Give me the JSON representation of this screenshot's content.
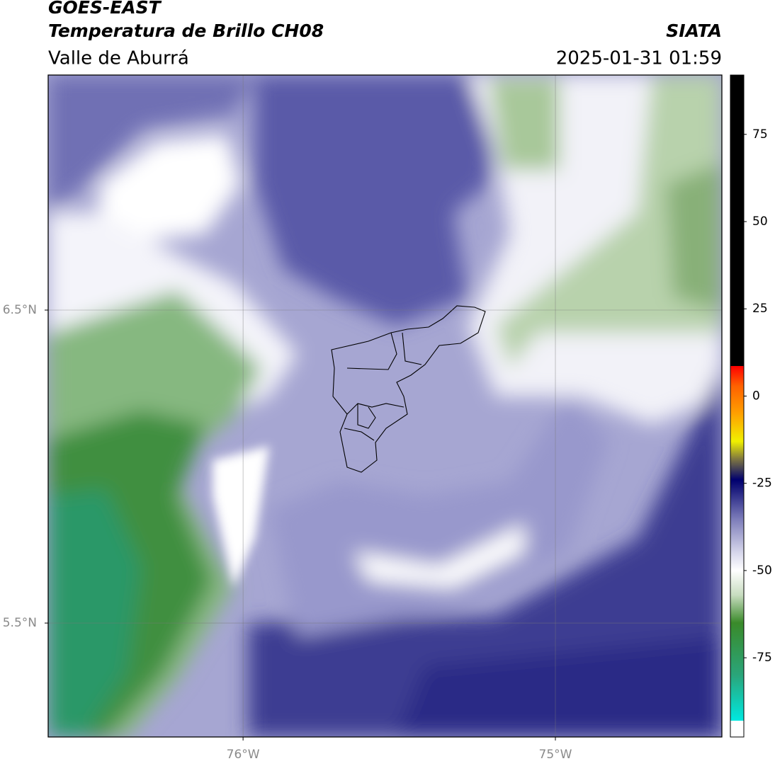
{
  "header": {
    "title": "GOES-EAST",
    "subtitle": "Temperatura de Brillo CH08",
    "region": "Valle de Aburrá",
    "source": "SIATA",
    "datetime": "2025-01-31 01:59"
  },
  "map": {
    "lon_range": [
      -76.624,
      -74.467
    ],
    "lat_range": [
      5.136,
      7.251
    ],
    "lon_ticks": [
      {
        "value": -76,
        "label": "76°W"
      },
      {
        "value": -75,
        "label": "75°W"
      }
    ],
    "lat_ticks": [
      {
        "value": 6.5,
        "label": "6.5°N"
      },
      {
        "value": 5.5,
        "label": "5.5°N"
      }
    ],
    "grid": true
  },
  "colorbar": {
    "range": [
      -97.7,
      92
    ],
    "ticks": [
      75,
      50,
      25,
      0,
      -25,
      -50,
      -75
    ],
    "stops": [
      {
        "value": -97.7,
        "color": "#ffffff"
      },
      {
        "value": -93,
        "color": "#ffffff"
      },
      {
        "value": -93,
        "color": "#00e8e0"
      },
      {
        "value": -80,
        "color": "#2aa57a"
      },
      {
        "value": -65,
        "color": "#3a8a2a"
      },
      {
        "value": -57,
        "color": "#c8dcc0"
      },
      {
        "value": -50,
        "color": "#ffffff"
      },
      {
        "value": -45,
        "color": "#d8d8ec"
      },
      {
        "value": -35,
        "color": "#7a7ab8"
      },
      {
        "value": -27,
        "color": "#202080"
      },
      {
        "value": -24,
        "color": "#00006e"
      },
      {
        "value": -18,
        "color": "#807840"
      },
      {
        "value": -13,
        "color": "#f0f000"
      },
      {
        "value": -5,
        "color": "#ffa000"
      },
      {
        "value": 3,
        "color": "#ff6000"
      },
      {
        "value": 8.6,
        "color": "#ff0000"
      },
      {
        "value": 8.6,
        "color": "#000000"
      },
      {
        "value": 92,
        "color": "#000000"
      }
    ]
  }
}
